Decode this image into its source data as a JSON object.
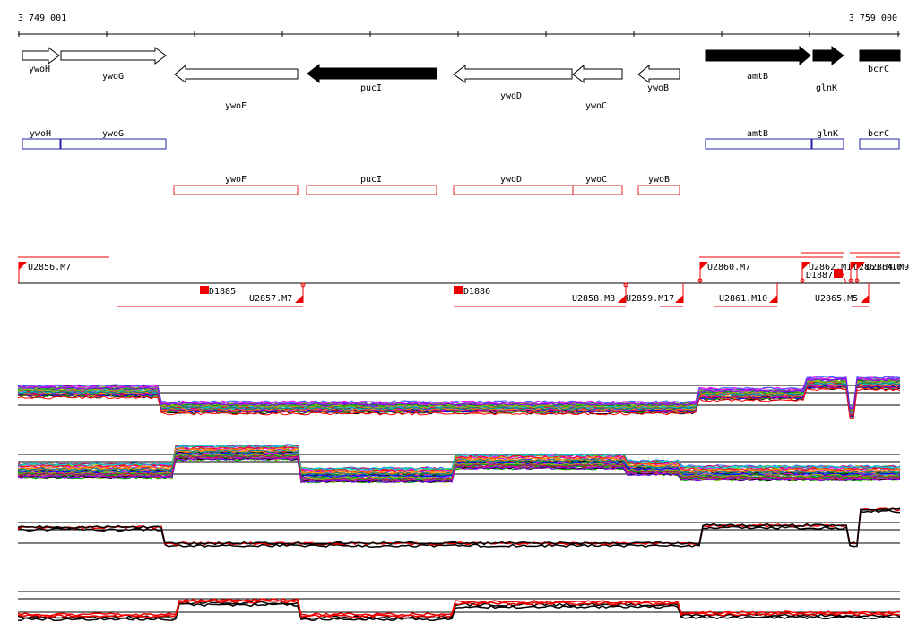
{
  "browser": {
    "coord_start": "3 749 001",
    "coord_end": "3 759 000",
    "colors": {
      "plus_outline": "#2222aa",
      "minus_outline": "#dd2222",
      "segment": "#ee0000",
      "profile_black": "#000000",
      "profile_red": "#ee0000"
    }
  },
  "genes": [
    {
      "name": "ywoH",
      "strand": "+",
      "filled": false
    },
    {
      "name": "ywoG",
      "strand": "+",
      "filled": false
    },
    {
      "name": "ywoF",
      "strand": "-",
      "filled": false
    },
    {
      "name": "pucI",
      "strand": "-",
      "filled": true
    },
    {
      "name": "ywoD",
      "strand": "-",
      "filled": false
    },
    {
      "name": "ywoC",
      "strand": "-",
      "filled": false
    },
    {
      "name": "ywoB",
      "strand": "-",
      "filled": false
    },
    {
      "name": "amtB",
      "strand": "+",
      "filled": true
    },
    {
      "name": "glnK",
      "strand": "+",
      "filled": true
    },
    {
      "name": "bcrC",
      "strand": "+",
      "filled": true
    }
  ],
  "boxes_plus": [
    {
      "name": "ywoH"
    },
    {
      "name": "ywoG"
    },
    {
      "name": "amtB"
    },
    {
      "name": "glnK"
    },
    {
      "name": "bcrC"
    }
  ],
  "boxes_minus": [
    {
      "name": "ywoF"
    },
    {
      "name": "pucI"
    },
    {
      "name": "ywoD"
    },
    {
      "name": "ywoC"
    },
    {
      "name": "ywoB"
    }
  ],
  "segments_top": [
    {
      "name": "U2856.M7"
    },
    {
      "name": "U2860.M7"
    },
    {
      "name": "U2862.M1"
    },
    {
      "name": "U2863.M10"
    },
    {
      "name": "U2864.M9"
    },
    {
      "name": "D1887"
    }
  ],
  "segments_bottom": [
    {
      "name": "D1885"
    },
    {
      "name": "U2857.M7"
    },
    {
      "name": "D1886"
    },
    {
      "name": "U2858.M8"
    },
    {
      "name": "U2859.M17"
    },
    {
      "name": "U2861.M10"
    },
    {
      "name": "U2865.M5"
    }
  ]
}
